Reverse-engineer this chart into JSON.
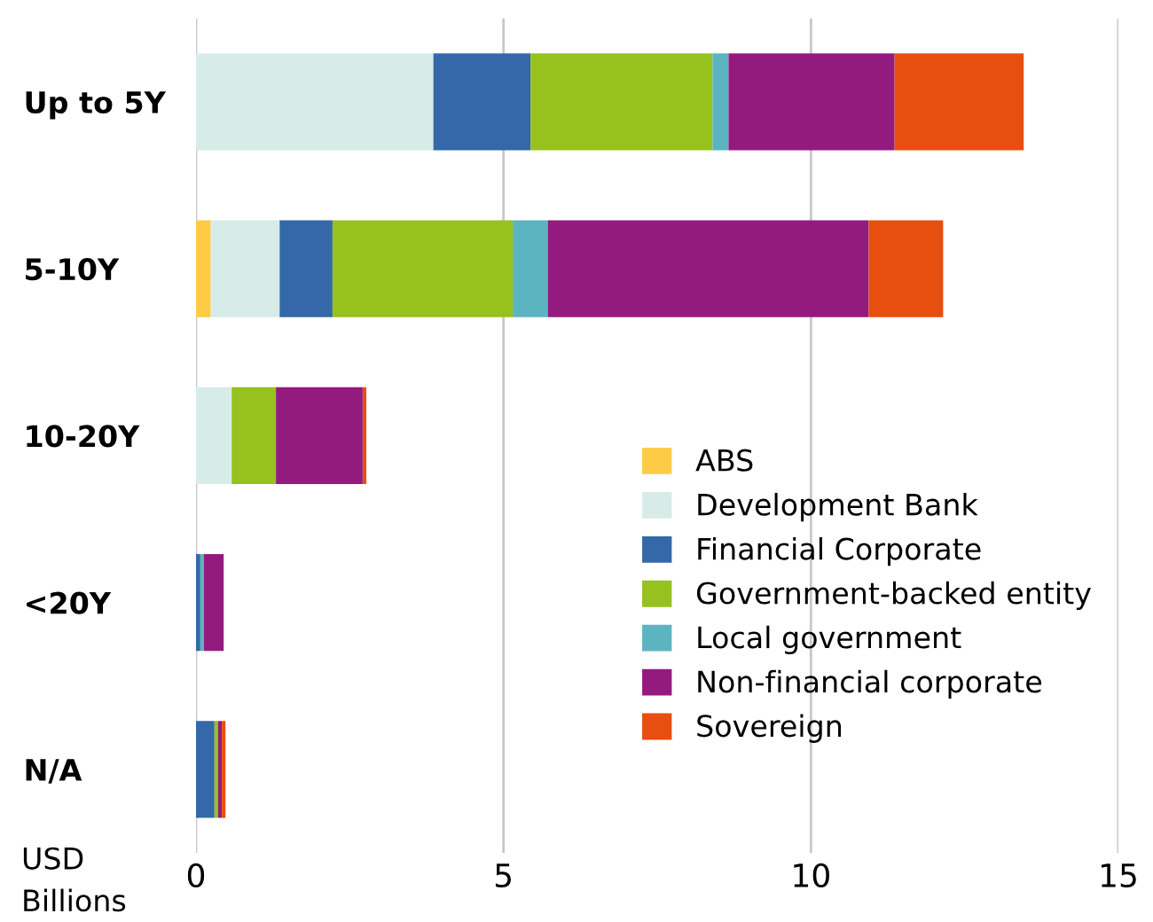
{
  "chart_data": {
    "type": "bar",
    "orientation": "horizontal",
    "stacked": true,
    "xlabel": "USD\nBillions",
    "categories": [
      "Up to 5Y",
      "5-10Y",
      "10-20Y",
      "<20Y",
      "N/A"
    ],
    "series": [
      {
        "name": "ABS",
        "color": "#fdcb45",
        "values": [
          0,
          0.24,
          0,
          0,
          0
        ]
      },
      {
        "name": "Development Bank",
        "color": "#d7ebe9",
        "values": [
          3.86,
          1.12,
          0.58,
          0,
          0
        ]
      },
      {
        "name": "Financial Corporate",
        "color": "#3468a8",
        "values": [
          1.58,
          0.86,
          0,
          0.07,
          0.3
        ]
      },
      {
        "name": "Government-backed entity",
        "color": "#96c11f",
        "values": [
          2.96,
          2.93,
          0.72,
          0,
          0.06
        ]
      },
      {
        "name": "Local government",
        "color": "#5db4c1",
        "values": [
          0.26,
          0.57,
          0,
          0.06,
          0
        ]
      },
      {
        "name": "Non-financial corporate",
        "color": "#931b7f",
        "values": [
          2.7,
          5.22,
          1.41,
          0.32,
          0.06
        ]
      },
      {
        "name": "Sovereign",
        "color": "#e84e0f",
        "values": [
          2.1,
          1.21,
          0.06,
          0,
          0.06
        ]
      }
    ],
    "xlim": [
      0,
      15
    ],
    "xticks": [
      0,
      5,
      10,
      15
    ],
    "grid": "x",
    "legend": "bottom right"
  }
}
